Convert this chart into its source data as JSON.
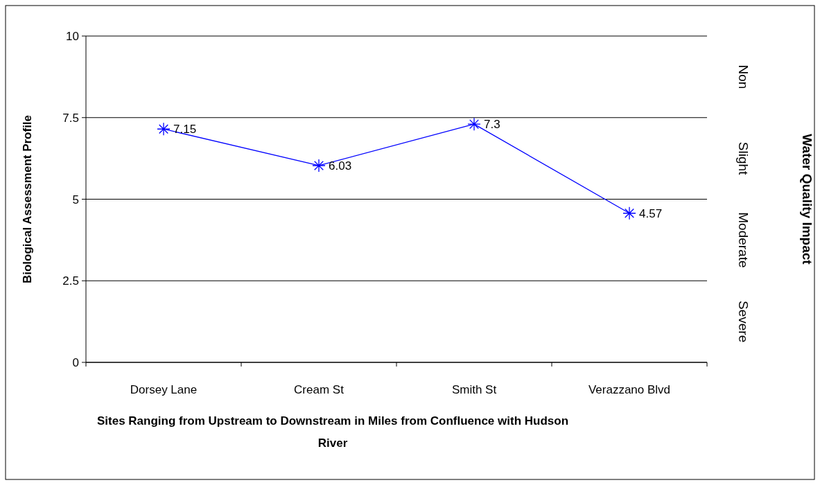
{
  "chart_data": {
    "type": "line",
    "xlabel": "Sites Ranging from Upstream to Downstream in Miles from Confluence with Hudson River",
    "ylabel": "Biological Assessment Profile",
    "categories": [
      "Dorsey Lane",
      "Cream St",
      "Smith St",
      "Verazzano Blvd"
    ],
    "series": [
      {
        "color": "#0000ff",
        "values": [
          7.15,
          6.03,
          7.3,
          4.57
        ]
      }
    ],
    "ylim": [
      0,
      10
    ],
    "yticks": [
      0,
      2.5,
      5,
      7.5,
      10
    ],
    "grid": "y",
    "marker": "cross",
    "line_style": "solid",
    "data_labels": true,
    "annotations": [
      "Non",
      "Slight",
      "Moderate",
      "Severe",
      "Water Quality Impact"
    ]
  }
}
